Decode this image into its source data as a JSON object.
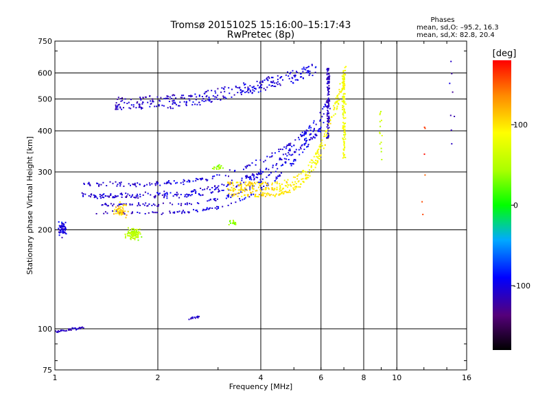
{
  "chart_data": {
    "type": "scatter",
    "title": "Tromsø 20151025 15:16:00–15:17:43",
    "subtitle": "RwPretec (8p)",
    "xlabel": "Frequency [MHz]",
    "ylabel": "Stationary phase Virtual Height [km]",
    "x_scale": "log",
    "y_scale": "log",
    "xlim": [
      1,
      16
    ],
    "ylim": [
      75,
      750
    ],
    "x_ticks": [
      1,
      2,
      4,
      6,
      8,
      10,
      16
    ],
    "y_ticks": [
      75,
      100,
      200,
      300,
      400,
      500,
      600,
      750
    ],
    "grid": true,
    "legend": {
      "title": "Phases",
      "lines": [
        "mean, sd,O: –95.2, 16.3",
        "mean, sd,X:  82.8, 20.4"
      ],
      "placement": "top-right"
    },
    "colorbar": {
      "label": "[deg]",
      "min": -180,
      "max": 180,
      "ticks": [
        100,
        0,
        -100
      ],
      "scheme": "rainbow"
    },
    "traces": [
      {
        "kind": "arc",
        "desc": "upper trace",
        "f0": 1.5,
        "f1": 5.8,
        "h0": 470,
        "h1": 600,
        "exp": 2.2,
        "phase0": -110,
        "phase1": -100,
        "n": 320,
        "jitter": 0.025,
        "rows": [
          0,
          0.03,
          0.06
        ]
      },
      {
        "kind": "arc",
        "desc": "o-mode lower",
        "f0": 1.3,
        "f1": 6.2,
        "h0": 225,
        "h1": 430,
        "exp": 5,
        "phase0": -110,
        "phase1": -95,
        "n": 360,
        "jitter": 0.015,
        "rows": [
          0,
          0.06,
          0.12
        ]
      },
      {
        "kind": "arc",
        "desc": "o-mode mid",
        "f0": 1.2,
        "f1": 6.0,
        "h0": 255,
        "h1": 400,
        "exp": 4,
        "phase0": -105,
        "phase1": -100,
        "n": 300,
        "jitter": 0.02,
        "rows": [
          0,
          0.08
        ]
      },
      {
        "kind": "arc",
        "desc": "x-mode",
        "f0": 3.2,
        "f1": 7.1,
        "h0": 255,
        "h1": 600,
        "exp": 6,
        "phase0": 110,
        "phase1": 85,
        "n": 380,
        "jitter": 0.02,
        "rows": [
          0,
          0.04,
          0.08
        ]
      },
      {
        "kind": "vert",
        "desc": "o-mode cusp",
        "f": 6.3,
        "h0": 380,
        "h1": 620,
        "phase": -110,
        "n": 120
      },
      {
        "kind": "vert",
        "desc": "x-mode cusp",
        "f": 7.0,
        "h0": 330,
        "h1": 600,
        "phase": 85,
        "n": 120
      },
      {
        "kind": "blob",
        "desc": "green patch",
        "f": 1.7,
        "h": 195,
        "sf": 0.06,
        "sh": 0.05,
        "phase": 50,
        "n": 90
      },
      {
        "kind": "blob",
        "desc": "yellow patch",
        "f": 1.55,
        "h": 230,
        "sf": 0.05,
        "sh": 0.05,
        "phase": 110,
        "n": 50
      },
      {
        "kind": "blob",
        "desc": "1 MHz cluster",
        "f": 1.05,
        "h": 200,
        "sf": 0.03,
        "sh": 0.06,
        "phase": -100,
        "n": 60
      },
      {
        "kind": "line",
        "desc": "low E layer",
        "f0": 1.0,
        "f1": 1.22,
        "h0": 98,
        "h1": 101,
        "phase": -110,
        "n": 40
      },
      {
        "kind": "line",
        "desc": "patch 2.5MHz",
        "f0": 2.45,
        "f1": 2.65,
        "h0": 107,
        "h1": 109,
        "phase": -110,
        "n": 14
      },
      {
        "kind": "blob",
        "desc": "green 3.3MHz",
        "f": 3.3,
        "h": 210,
        "sf": 0.03,
        "sh": 0.02,
        "phase": 40,
        "n": 15
      },
      {
        "kind": "blob",
        "desc": "green 3.0MHz",
        "f": 3.0,
        "h": 310,
        "sf": 0.05,
        "sh": 0.02,
        "phase": 40,
        "n": 20
      },
      {
        "kind": "blob",
        "desc": "scatter 9MHz",
        "f": 9.0,
        "h": 400,
        "sf": 0.015,
        "sh": 0.25,
        "phase": 60,
        "n": 14
      },
      {
        "kind": "blob",
        "desc": "scatter 15MHz",
        "f": 14.5,
        "h": 450,
        "sf": 0.02,
        "sh": 0.35,
        "phase": -110,
        "n": 8
      },
      {
        "kind": "blob",
        "desc": "scatter 12MHz",
        "f": 12.0,
        "h": 300,
        "sf": 0.02,
        "sh": 0.35,
        "phase": 150,
        "n": 6
      }
    ]
  }
}
